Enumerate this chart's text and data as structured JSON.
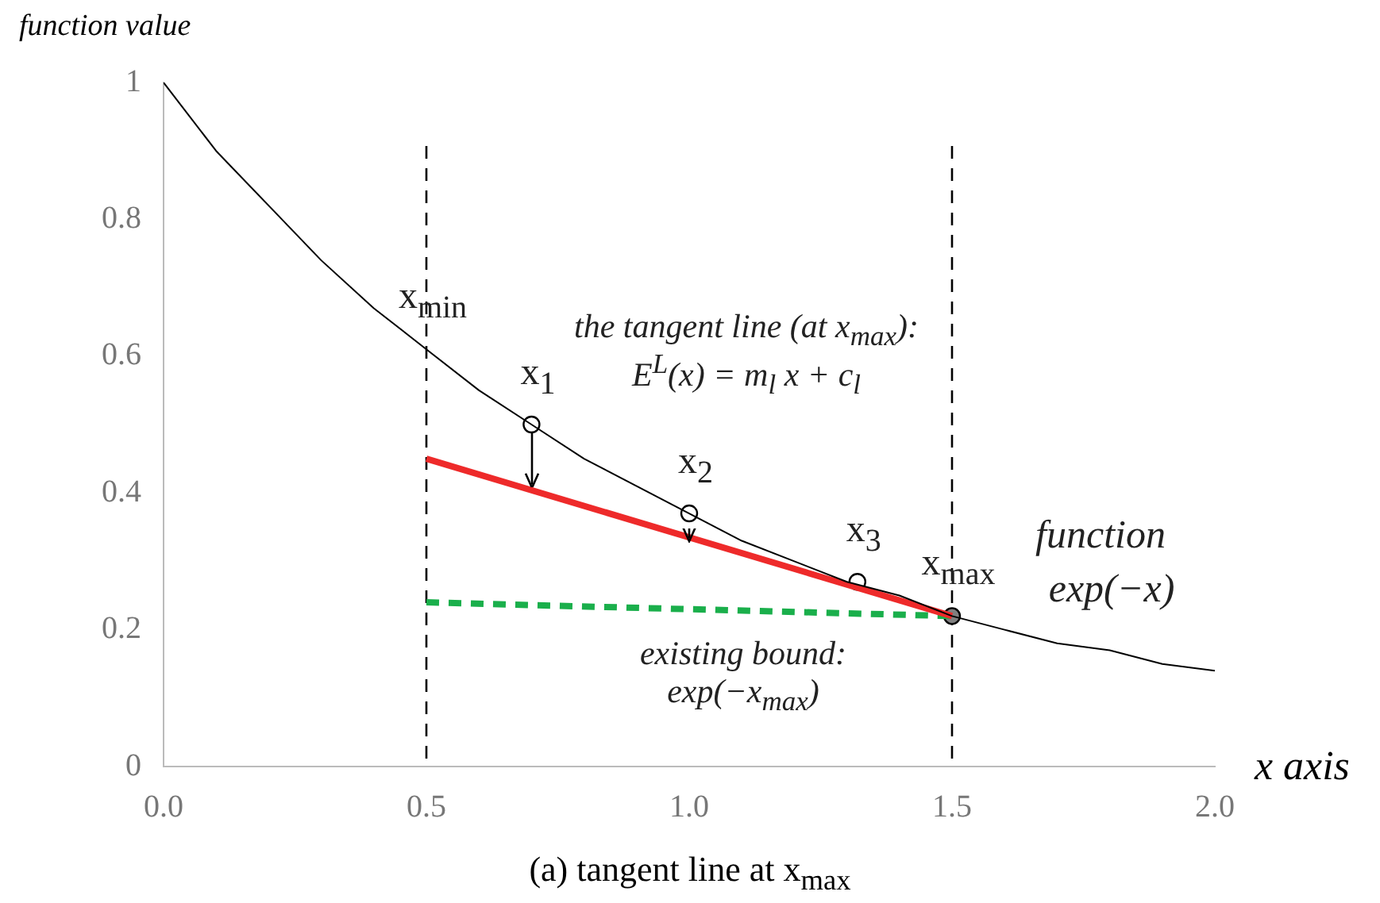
{
  "chart_data": {
    "type": "line",
    "ylabel": "function value",
    "xlabel": "x axis",
    "subtitle": "(a) tangent line at x$_{max}$",
    "xlim": [
      0,
      2
    ],
    "xticks": [
      {
        "value": 0,
        "label": "0.0"
      },
      {
        "value": 0.5,
        "label": "0.5"
      },
      {
        "value": 1,
        "label": "1.0"
      },
      {
        "value": 1.5,
        "label": "1.5"
      },
      {
        "value": 2,
        "label": "2.0"
      }
    ],
    "ylim": [
      0,
      1
    ],
    "yticks": [
      0,
      0.2,
      0.4,
      0.6,
      0.8,
      1
    ],
    "grid": false,
    "legend": false,
    "marker": "none",
    "series": [
      {
        "color": "#000000",
        "x": [
          0,
          0.1,
          0.2,
          0.3,
          0.4,
          0.5,
          0.6,
          0.7,
          0.8,
          0.9,
          1,
          1.1,
          1.2,
          1.3,
          1.4,
          1.5,
          1.6,
          1.7,
          1.8,
          1.9,
          2
        ],
        "values": [
          1,
          0.9,
          0.82,
          0.74,
          0.67,
          0.61,
          0.55,
          0.5,
          0.45,
          0.41,
          0.37,
          0.33,
          0.3,
          0.27,
          0.25,
          0.22,
          0.2,
          0.18,
          0.17,
          0.15,
          0.14
        ]
      },
      {
        "type": "line",
        "color": "#ee2a2a",
        "x": [
          0.5,
          1.5
        ],
        "values": [
          0.45,
          0.22
        ]
      },
      {
        "type": "line",
        "color": "#1aaf4b",
        "line_style": "dashed",
        "x": [
          0.5,
          1.5
        ],
        "values": [
          0.24,
          0.22
        ]
      },
      {
        "type": "scatter",
        "marker": "circle",
        "color": "#ffffff",
        "x": [
          0.7,
          1.0,
          1.32
        ],
        "values": [
          0.5,
          0.37,
          0.27
        ]
      },
      {
        "type": "scatter",
        "marker": "circle",
        "color": "#808080",
        "x": [
          1.5
        ],
        "values": [
          0.22
        ]
      }
    ],
    "ref_lines": [
      {
        "axis": "x",
        "value": 0.5,
        "line_style": "dashed",
        "color": "#000000"
      },
      {
        "axis": "x",
        "value": 1.5,
        "line_style": "dashed",
        "color": "#000000"
      }
    ],
    "annotations": [
      {
        "text": "x$_{min}$",
        "x": 0.5,
        "y": 0.61
      },
      {
        "text": "x$_{1}$",
        "x": 0.7,
        "y": 0.5
      },
      {
        "text": "x$_{2}$",
        "x": 1.0,
        "y": 0.37
      },
      {
        "text": "x$_{3}$",
        "x": 1.32,
        "y": 0.27
      },
      {
        "text": "x$_{max}$",
        "x": 1.5,
        "y": 0.22
      },
      "the tangent line (at x$_{max}$):",
      "E$^{L}$(x) = m$_{l}$ x + c$_{l}$",
      "existing bound:",
      "exp(−x$_{max}$)",
      "function",
      "exp(−x)"
    ]
  }
}
